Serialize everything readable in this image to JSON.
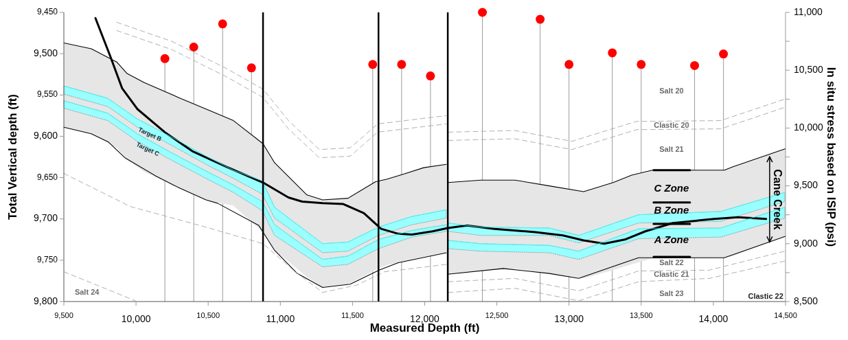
{
  "chart_data": {
    "type": "line",
    "xlabel": "Measured Depth (ft)",
    "ylabel": "Total Vertical depth (ft)",
    "y2label": "In situ stress based on ISIP (psi)",
    "xlim": [
      9500,
      14500
    ],
    "xticks": [
      {
        "value": 9500,
        "label": "9,500"
      },
      {
        "value": 10000,
        "label": "10,000"
      },
      {
        "value": 10500,
        "label": "10,500"
      },
      {
        "value": 11000,
        "label": "11,000"
      },
      {
        "value": 11500,
        "label": "11,500"
      },
      {
        "value": 12000,
        "label": "12,000"
      },
      {
        "value": 12500,
        "label": "12,500"
      },
      {
        "value": 13000,
        "label": "13,000"
      },
      {
        "value": 13500,
        "label": "13,500"
      },
      {
        "value": 14000,
        "label": "14,000"
      },
      {
        "value": 14500,
        "label": "14,500"
      }
    ],
    "ylim": [
      9800,
      9450
    ],
    "yticks": [
      {
        "value": 9450,
        "label": "9,450"
      },
      {
        "value": 9500,
        "label": "9,500"
      },
      {
        "value": 9550,
        "label": "9,550"
      },
      {
        "value": 9600,
        "label": "9,600"
      },
      {
        "value": 9650,
        "label": "9,650"
      },
      {
        "value": 9700,
        "label": "9,700"
      },
      {
        "value": 9750,
        "label": "9,750"
      },
      {
        "value": 9800,
        "label": "9,800"
      }
    ],
    "y2lim": [
      8500,
      11000
    ],
    "y2ticks": [
      {
        "value": 8500,
        "label": "8,500"
      },
      {
        "value": 8750,
        "label": null
      },
      {
        "value": 9000,
        "label": "9,000"
      },
      {
        "value": 9250,
        "label": null
      },
      {
        "value": 9500,
        "label": "9,500"
      },
      {
        "value": 9750,
        "label": null
      },
      {
        "value": 10000,
        "label": "10,000"
      },
      {
        "value": 10250,
        "label": null
      },
      {
        "value": 10500,
        "label": "10,500"
      },
      {
        "value": 10750,
        "label": null
      },
      {
        "value": 11000,
        "label": "11,000"
      }
    ],
    "grid": false,
    "series": [
      {
        "color": "#000000",
        "x": [
          9719,
          9819,
          9904,
          10009,
          10199,
          10390,
          10627,
          10880,
          11056,
          11151,
          11293,
          11436,
          11579,
          11698,
          11817,
          11912,
          12055,
          12160,
          12292,
          12483,
          12768,
          12958,
          13101,
          13244,
          13386,
          13529,
          13719,
          14005,
          14171,
          14366
        ],
        "values": [
          9457,
          9502,
          9542,
          9567,
          9595,
          9618,
          9637,
          9656,
          9674,
          9679,
          9681,
          9682,
          9693,
          9712,
          9718,
          9719,
          9715,
          9711,
          9708,
          9712,
          9716,
          9720,
          9726,
          9730,
          9725,
          9715,
          9705,
          9700,
          9698,
          9700
        ]
      },
      {
        "color": "#000000",
        "x": [
          9500,
          9690,
          9866,
          9938,
          10057,
          10294,
          10485,
          10675,
          10880,
          10960,
          11184,
          11293,
          11469,
          11660,
          11736,
          11850,
          11993,
          12150
        ],
        "values": [
          9487,
          9494,
          9510,
          9524,
          9535,
          9553,
          9567,
          9581,
          9609,
          9632,
          9671,
          9677,
          9675,
          9655,
          9652,
          9646,
          9638,
          9634
        ],
        "upper": [
          9487,
          9494,
          9510,
          9524,
          9535,
          9553,
          9567,
          9581,
          9609,
          9632,
          9671,
          9677,
          9675,
          9655,
          9652,
          9646,
          9638,
          9634
        ],
        "lower": [
          9589,
          9597,
          9614,
          9628,
          9643,
          9662,
          9677,
          9684,
          9716,
          9738,
          9770,
          9783,
          9779,
          9762,
          9756,
          9752,
          9746,
          9741
        ]
      },
      {
        "color": "#000000",
        "x": [
          12160,
          12388,
          12625,
          12863,
          13101,
          13306,
          13434,
          13577,
          14076,
          14133,
          14500
        ],
        "values": [
          9656,
          9653,
          9653,
          9660,
          9667,
          9656,
          9647,
          9641,
          9641,
          9637,
          9615
        ],
        "upper": [
          9656,
          9653,
          9653,
          9660,
          9667,
          9656,
          9647,
          9641,
          9641,
          9637,
          9615
        ],
        "lower": [
          9767,
          9763,
          9760,
          9766,
          9772,
          9762,
          9755,
          9748,
          9747,
          9745,
          9721
        ]
      },
      {
        "color": "#000000",
        "x": [
          9500,
          9690,
          9809,
          9923,
          10137,
          10294,
          10485,
          10565,
          10851,
          10880,
          10960,
          11117,
          11293,
          11484,
          11684,
          11817,
          12150
        ],
        "values": [
          9589,
          9597,
          9607,
          9626,
          9648,
          9662,
          9677,
          9681,
          9708,
          9716,
          9738,
          9766,
          9783,
          9779,
          9762,
          9753,
          9741
        ]
      },
      {
        "color": "#000000",
        "x": [
          12160,
          12545,
          12863,
          13067,
          13481,
          14076,
          14500
        ],
        "values": [
          9767,
          9760,
          9766,
          9772,
          9747,
          9747,
          9721
        ]
      },
      {
        "color": "#33ffff",
        "x": [
          9500,
          9804,
          10009,
          10247,
          10485,
          10675,
          10875,
          10960,
          11293,
          11469,
          11679,
          11912,
          12150
        ],
        "values": [
          9539,
          9554,
          9579,
          9601,
          9624,
          9641,
          9654,
          9686,
          9730,
          9728,
          9710,
          9697,
          9689
        ],
        "upper": [
          9539,
          9554,
          9579,
          9601,
          9624,
          9641,
          9654,
          9686,
          9730,
          9728,
          9710,
          9697,
          9689
        ],
        "lower": [
          9549,
          9564,
          9589,
          9611,
          9634,
          9651,
          9670,
          9699,
          9741,
          9739,
          9720,
          9707,
          9699
        ]
      },
      {
        "color": "#33ffff",
        "x": [
          9500,
          9804,
          10009,
          10247,
          10485,
          10675,
          10875,
          10960,
          11293,
          11469,
          11679,
          11912,
          12150
        ],
        "values": [
          9557,
          9572,
          9597,
          9620,
          9642,
          9659,
          9679,
          9707,
          9749,
          9745,
          9725,
          9714,
          9707
        ],
        "upper": [
          9557,
          9572,
          9597,
          9620,
          9642,
          9659,
          9679,
          9707,
          9749,
          9745,
          9725,
          9714,
          9707
        ],
        "lower": [
          9566,
          9581,
          9606,
          9629,
          9651,
          9668,
          9690,
          9720,
          9758,
          9755,
          9736,
          9722,
          9715
        ]
      },
      {
        "color": "#33ffff",
        "x": [
          12160,
          12388,
          12863,
          13067,
          13481,
          14052,
          14495
        ],
        "values": [
          9705,
          9710,
          9711,
          9720,
          9695,
          9691,
          9668
        ],
        "upper": [
          9705,
          9710,
          9711,
          9720,
          9695,
          9691,
          9668
        ],
        "lower": [
          9715,
          9720,
          9720,
          9729,
          9705,
          9703,
          9679
        ]
      },
      {
        "color": "#33ffff",
        "x": [
          12160,
          12388,
          12863,
          13067,
          13481,
          14052,
          14495
        ],
        "values": [
          9726,
          9730,
          9732,
          9739,
          9712,
          9711,
          9686
        ],
        "upper": [
          9726,
          9730,
          9732,
          9739,
          9712,
          9711,
          9686
        ],
        "lower": [
          9736,
          9739,
          9741,
          9749,
          9724,
          9722,
          9699
        ]
      },
      {
        "color": "#a6a6a6",
        "line_style": "dashed",
        "x": [
          9866,
          10247,
          10627,
          10880,
          11056,
          11270,
          11484,
          11674,
          12150,
          12157,
          12164,
          12625,
          12863,
          13020,
          13467,
          14052,
          14495
        ],
        "values": [
          9462,
          9485,
          9518,
          9543,
          9581,
          9616,
          9614,
          9585,
          9575,
          null,
          9595,
          9593,
          9601,
          9606,
          9582,
          9581,
          9555
        ]
      },
      {
        "color": "#a6a6a6",
        "line_style": "dashed",
        "x": [
          9866,
          10247,
          10627,
          10880,
          11056,
          11270,
          11484,
          11674,
          12150,
          12157,
          12164,
          12625,
          12863,
          13020,
          13467,
          14052,
          14495
        ],
        "values": [
          9472,
          9495,
          9528,
          9553,
          9591,
          9626,
          9624,
          9595,
          9585,
          null,
          9605,
          9603,
          9611,
          9616,
          9592,
          9591,
          9565
        ]
      },
      {
        "color": "#a6a6a6",
        "line_style": "dashed",
        "x": [
          9500,
          9961,
          10485,
          10880,
          11103,
          11293,
          11531,
          11722,
          12150,
          12157,
          12164,
          12625,
          13068,
          13481,
          13972,
          14495
        ],
        "values": [
          9645,
          9685,
          9710,
          9730,
          9764,
          9789,
          9780,
          9764,
          9755,
          null,
          9776,
          9772,
          9787,
          9763,
          9762,
          9739
        ]
      },
      {
        "color": "#a6a6a6",
        "line_style": "dashed",
        "x": [
          12164,
          12625,
          13068,
          13481,
          13972,
          14495
        ],
        "values": [
          9789,
          9784,
          9799,
          9776,
          9772,
          9751
        ]
      },
      {
        "color": "#a6a6a6",
        "line_style": "dashed",
        "x": [
          9500,
          9995
        ],
        "values": [
          9764,
          9799
        ]
      },
      {
        "color": "#000000",
        "x": [
          13586,
          13838
        ],
        "values": [
          9641,
          9641
        ]
      },
      {
        "color": "#000000",
        "x": [
          13586,
          13838
        ],
        "values": [
          9680,
          9680
        ]
      },
      {
        "color": "#000000",
        "x": [
          13586,
          13838
        ],
        "values": [
          9706,
          9706
        ]
      },
      {
        "color": "#000000",
        "x": [
          13586,
          13838
        ],
        "values": [
          9746,
          9746
        ]
      },
      {
        "type": "lollipop",
        "axis": "y2",
        "color": "#ff0000",
        "marker": "circle",
        "x": [
          10200,
          10400,
          10600,
          10800,
          11640,
          11840,
          12040,
          12400,
          12800,
          13000,
          13300,
          13500,
          13870,
          14070
        ],
        "values": [
          10600,
          10700,
          10900,
          10520,
          10550,
          10550,
          10450,
          11000,
          10940,
          10550,
          10650,
          10550,
          10540,
          10640
        ]
      }
    ],
    "ref_lines": [
      {
        "axis": "x",
        "value": 10880,
        "color": "#000000"
      },
      {
        "axis": "x",
        "value": 11680,
        "color": "#000000"
      },
      {
        "axis": "x",
        "value": 12160,
        "color": "#000000"
      }
    ],
    "annotations": [
      "Salt 20",
      "Clastic 20",
      "Salt 21",
      "C Zone",
      "Salt 22",
      "Clastic 21",
      "Salt 23",
      "Clastic 22",
      "Salt 24",
      "Cane Creek",
      {
        "text": "B Zone",
        "x": 13710,
        "y": 9690
      },
      {
        "text": "A Zone",
        "x": 13710,
        "y": 9726
      },
      {
        "text": "Target B",
        "x": 10095,
        "y": 9598
      },
      {
        "text": "Target C",
        "x": 10080,
        "y": 9616
      }
    ]
  }
}
